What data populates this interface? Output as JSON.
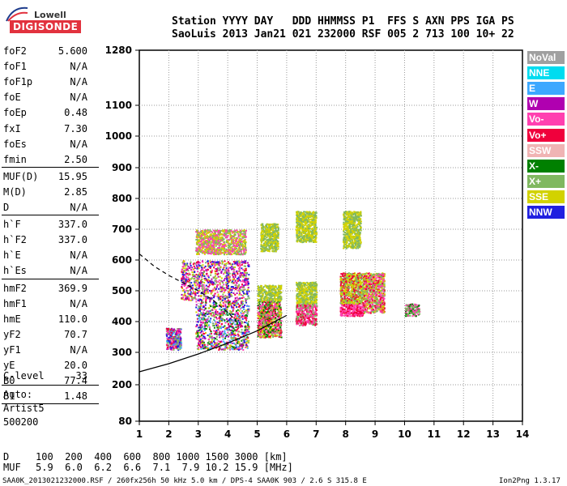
{
  "logo": {
    "top": "Lowell",
    "bottom": "DIGISONDE"
  },
  "header": {
    "line1": "Station YYYY DAY   DDD HHMMSS P1  FFS S AXN PPS IGA PS",
    "line2": "SaoLuis 2013 Jan21 021 232000 RSF 005 2 713 100 10+ 22"
  },
  "params": [
    {
      "name": "foF2",
      "value": "5.600"
    },
    {
      "name": "foF1",
      "value": "N/A"
    },
    {
      "name": "foF1p",
      "value": "N/A"
    },
    {
      "name": "foE",
      "value": "N/A"
    },
    {
      "name": "foEp",
      "value": "0.48"
    },
    {
      "name": "fxI",
      "value": "7.30"
    },
    {
      "name": "foEs",
      "value": "N/A"
    },
    {
      "name": "fmin",
      "value": "2.50"
    },
    {
      "name": "MUF(D)",
      "value": "15.95"
    },
    {
      "name": "M(D)",
      "value": "2.85"
    },
    {
      "name": "D",
      "value": "N/A"
    },
    {
      "name": "h`F",
      "value": "337.0"
    },
    {
      "name": "h`F2",
      "value": "337.0"
    },
    {
      "name": "h`E",
      "value": "N/A"
    },
    {
      "name": "h`Es",
      "value": "N/A"
    },
    {
      "name": "hmF2",
      "value": "369.9"
    },
    {
      "name": "hmF1",
      "value": "N/A"
    },
    {
      "name": "hmE",
      "value": "110.0"
    },
    {
      "name": "yF2",
      "value": "70.7"
    },
    {
      "name": "yF1",
      "value": "N/A"
    },
    {
      "name": "yE",
      "value": "20.0"
    },
    {
      "name": "B0",
      "value": "77.4"
    },
    {
      "name": "B1",
      "value": "1.48"
    }
  ],
  "clevel": {
    "name": "C-level",
    "value": "33"
  },
  "autoscaler": {
    "line1": "Auto:",
    "line2": "Artist5",
    "line3": "500200"
  },
  "legend": [
    {
      "label": "NoVal",
      "color": "#a0a0a0"
    },
    {
      "label": "NNE",
      "color": "#00dcf0"
    },
    {
      "label": "E",
      "color": "#3ca8ff"
    },
    {
      "label": "W",
      "color": "#b000b0"
    },
    {
      "label": "Vo-",
      "color": "#ff40b0"
    },
    {
      "label": "Vo+",
      "color": "#f0003c"
    },
    {
      "label": "SSW",
      "color": "#f0b4b4"
    },
    {
      "label": "X-",
      "color": "#008000"
    },
    {
      "label": "X+",
      "color": "#80b860"
    },
    {
      "label": "SSE",
      "color": "#d2d200"
    },
    {
      "label": "NNW",
      "color": "#2020e0"
    }
  ],
  "dmuf": {
    "d_label": "D",
    "d_values": "100  200  400  600  800 1000 1500 3000 [km]",
    "muf_label": "MUF",
    "muf_values": "5.9  6.0  6.2  6.6  7.1  7.9 10.2 15.9 [MHz]"
  },
  "footer": {
    "left": "SAA0K_2013021232000.RSF / 260fx256h 50 kHz 5.0 km / DPS-4 SAA0K 903 / 2.6 S 315.8 E",
    "right": "Ion2Png 1.3.17"
  },
  "chart_data": {
    "type": "scatter",
    "title": "",
    "xlabel": "",
    "ylabel": "",
    "xlim": [
      1,
      14
    ],
    "ylim": [
      80,
      1280
    ],
    "x_ticks": [
      1,
      2,
      3,
      4,
      5,
      6,
      7,
      8,
      9,
      10,
      11,
      12,
      13,
      14
    ],
    "y_ticks": [
      80,
      200,
      300,
      400,
      500,
      600,
      700,
      800,
      900,
      1000,
      1100,
      1280
    ],
    "y_scale": "nonlinear (ionogram virtual height)",
    "grid": true,
    "legend_position": "right",
    "clusters": [
      {
        "x": [
          1.9,
          2.4
        ],
        "y": [
          310,
          380
        ],
        "colors": [
          "#f0003c",
          "#ff40b0",
          "#2020e0",
          "#b000b0",
          "#3ca8ff",
          "#80b860"
        ]
      },
      {
        "x": [
          2.9,
          4.7
        ],
        "y": [
          310,
          470
        ],
        "colors": [
          "#f0003c",
          "#ff40b0",
          "#b000b0",
          "#2020e0",
          "#3ca8ff",
          "#d2d200",
          "#80b860",
          "#008000"
        ]
      },
      {
        "x": [
          2.4,
          4.7
        ],
        "y": [
          470,
          600
        ],
        "colors": [
          "#ff40b0",
          "#b000b0",
          "#f0003c",
          "#d2d200",
          "#80b860",
          "#2020e0"
        ]
      },
      {
        "x": [
          2.9,
          4.6
        ],
        "y": [
          620,
          700
        ],
        "colors": [
          "#d2d200",
          "#80b860",
          "#ff40b0"
        ]
      },
      {
        "x": [
          5.0,
          5.8
        ],
        "y": [
          350,
          470
        ],
        "colors": [
          "#f0003c",
          "#ff40b0",
          "#d2d200",
          "#80b860",
          "#008000"
        ]
      },
      {
        "x": [
          5.0,
          5.8
        ],
        "y": [
          470,
          520
        ],
        "colors": [
          "#d2d200",
          "#80b860"
        ]
      },
      {
        "x": [
          5.1,
          5.7
        ],
        "y": [
          630,
          720
        ],
        "colors": [
          "#d2d200",
          "#80b860"
        ]
      },
      {
        "x": [
          6.3,
          7.0
        ],
        "y": [
          390,
          460
        ],
        "colors": [
          "#f0003c",
          "#ff40b0",
          "#80b860"
        ]
      },
      {
        "x": [
          6.3,
          7.0
        ],
        "y": [
          460,
          530
        ],
        "colors": [
          "#d2d200",
          "#80b860"
        ]
      },
      {
        "x": [
          6.3,
          7.0
        ],
        "y": [
          660,
          760
        ],
        "colors": [
          "#d2d200",
          "#80b860"
        ]
      },
      {
        "x": [
          7.8,
          8.6
        ],
        "y": [
          420,
          460
        ],
        "colors": [
          "#f0003c",
          "#ff40b0"
        ]
      },
      {
        "x": [
          7.8,
          8.6
        ],
        "y": [
          460,
          560
        ],
        "colors": [
          "#d2d200",
          "#80b860",
          "#f0003c"
        ]
      },
      {
        "x": [
          7.9,
          8.5
        ],
        "y": [
          640,
          760
        ],
        "colors": [
          "#d2d200",
          "#80b860"
        ]
      },
      {
        "x": [
          8.6,
          9.3
        ],
        "y": [
          430,
          560
        ],
        "colors": [
          "#d2d200",
          "#80b860",
          "#f0003c",
          "#ff40b0"
        ]
      },
      {
        "x": [
          10.0,
          10.5
        ],
        "y": [
          420,
          460
        ],
        "colors": [
          "#80b860",
          "#ff40b0",
          "#008000"
        ]
      }
    ],
    "profile_curve": {
      "note": "solid line from (1,240) rising to (6,420)",
      "x": [
        1,
        2,
        3,
        4,
        5,
        6
      ],
      "y": [
        240,
        265,
        295,
        330,
        370,
        420
      ]
    },
    "dashed_curve": {
      "note": "dashed line from (1,620) down to (4.3,400)",
      "x": [
        1.0,
        1.5,
        2.0,
        2.5,
        3.0,
        3.5,
        4.0,
        4.3
      ],
      "y": [
        620,
        580,
        550,
        525,
        500,
        470,
        430,
        400
      ]
    }
  }
}
